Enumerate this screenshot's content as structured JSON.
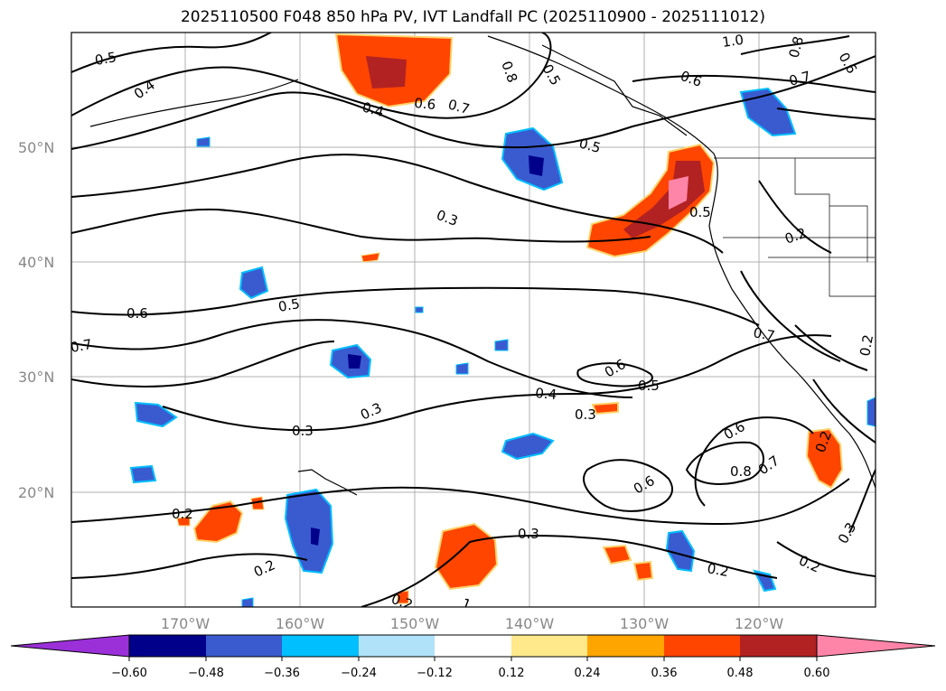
{
  "title": "2025110500 F048 850 hPa PV, IVT Landfall PC (2025110900 - 2025111012)",
  "latitude_labels": [
    "50°N",
    "40°N",
    "30°N",
    "20°N"
  ],
  "longitude_labels": [
    "170°W",
    "160°W",
    "150°W",
    "140°W",
    "130°W",
    "120°W"
  ],
  "colorbar": {
    "ticks": [
      "−0.60",
      "−0.48",
      "−0.36",
      "−0.24",
      "−0.12",
      "0.12",
      "0.24",
      "0.36",
      "0.48",
      "0.60"
    ],
    "colors": {
      "below_min": "#9b30d9",
      "b1": "#00008b",
      "b2": "#3a5bd0",
      "b3": "#00bfff",
      "b4": "#b0e2fa",
      "b5": "#ffffff",
      "b6": "#ffe98a",
      "b7": "#ffa500",
      "b8": "#ff4500",
      "b9": "#b22222",
      "above_max": "#ff85a8"
    }
  },
  "contour_labels": [
    "0.5",
    "0.4",
    "1.0",
    "0.8",
    "0.6",
    "0.6",
    "0.7",
    "0.4",
    "0.6",
    "0.7",
    "0.8",
    "0.5",
    "0.5",
    "0.3",
    "0.5",
    "0.2",
    "0.6",
    "0.5",
    "0.7",
    "0.7",
    "0.6",
    "0.4",
    "0.5",
    "0.3",
    "0.3",
    "0.3",
    "0.6",
    "0.8",
    "0.7",
    "0.6",
    "0.3",
    "0.2",
    "0.2",
    "0.2",
    "0.2",
    "0.3",
    "0.2",
    "0.2",
    "0.2",
    "1"
  ]
}
